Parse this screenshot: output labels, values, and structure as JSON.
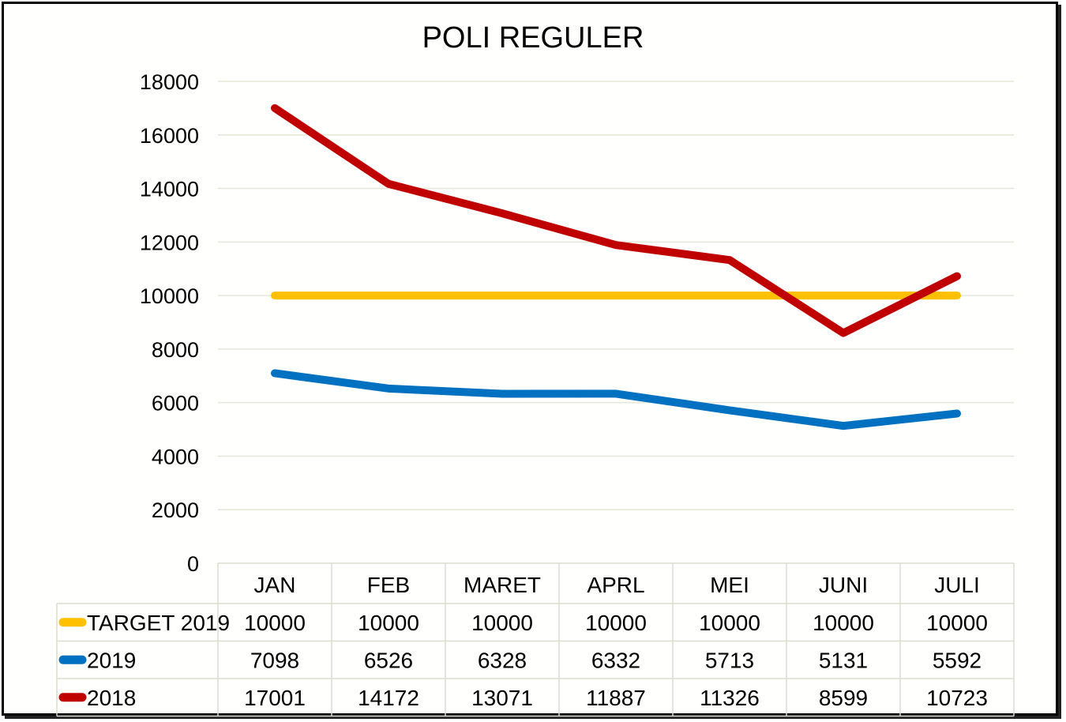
{
  "chart_data": {
    "type": "line",
    "title": "POLI REGULER",
    "categories": [
      "JAN",
      "FEB",
      "MARET",
      "APRL",
      "MEI",
      "JUNI",
      "JULI"
    ],
    "ylim": [
      0,
      18000
    ],
    "yticks": [
      0,
      2000,
      4000,
      6000,
      8000,
      10000,
      12000,
      14000,
      16000,
      18000
    ],
    "grid": true,
    "legend": "data-table-bottom",
    "series": [
      {
        "name": "TARGET 2019",
        "color": "#FFC000",
        "values": [
          10000,
          10000,
          10000,
          10000,
          10000,
          10000,
          10000
        ]
      },
      {
        "name": "2019",
        "color": "#0070C0",
        "values": [
          7098,
          6526,
          6328,
          6332,
          5713,
          5131,
          5592
        ]
      },
      {
        "name": "2018",
        "color": "#C00000",
        "values": [
          17001,
          14172,
          13071,
          11887,
          11326,
          8599,
          10723
        ]
      }
    ]
  }
}
